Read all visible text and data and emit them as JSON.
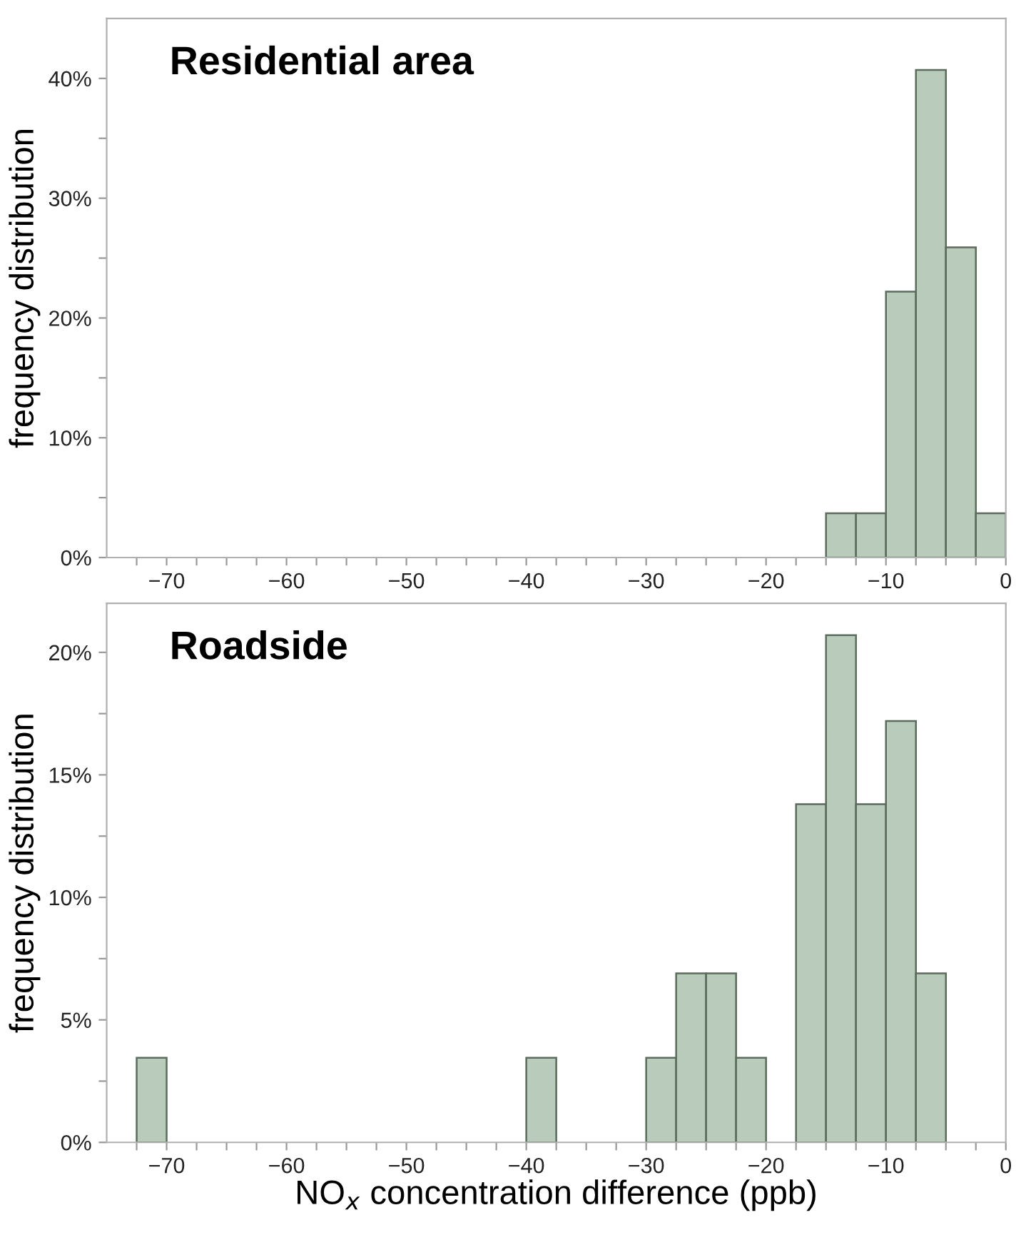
{
  "chart_data": [
    {
      "type": "histogram",
      "title": "Residential area",
      "ylabel": "frequency distribution",
      "color": "#b9cbbb",
      "bins": [
        -15,
        -12.5,
        -10,
        -7.5,
        -5,
        -2.5,
        0
      ],
      "values": [
        3.7,
        3.7,
        22.2,
        40.7,
        25.9,
        3.7
      ],
      "xlim": [
        -75,
        0
      ],
      "xticks": [
        {
          "value": -72.5,
          "label": null
        },
        {
          "value": -70,
          "label": "−70"
        },
        {
          "value": -67.5,
          "label": null
        },
        {
          "value": -65,
          "label": null
        },
        {
          "value": -62.5,
          "label": null
        },
        {
          "value": -60,
          "label": "−60"
        },
        {
          "value": -57.5,
          "label": null
        },
        {
          "value": -55,
          "label": null
        },
        {
          "value": -52.5,
          "label": null
        },
        {
          "value": -50,
          "label": "−50"
        },
        {
          "value": -47.5,
          "label": null
        },
        {
          "value": -45,
          "label": null
        },
        {
          "value": -42.5,
          "label": null
        },
        {
          "value": -40,
          "label": "−40"
        },
        {
          "value": -37.5,
          "label": null
        },
        {
          "value": -35,
          "label": null
        },
        {
          "value": -32.5,
          "label": null
        },
        {
          "value": -30,
          "label": "−30"
        },
        {
          "value": -27.5,
          "label": null
        },
        {
          "value": -25,
          "label": null
        },
        {
          "value": -22.5,
          "label": null
        },
        {
          "value": -20,
          "label": "−20"
        },
        {
          "value": -17.5,
          "label": null
        },
        {
          "value": -15,
          "label": null
        },
        {
          "value": -12.5,
          "label": null
        },
        {
          "value": -10,
          "label": "−10"
        },
        {
          "value": -7.5,
          "label": null
        },
        {
          "value": -5,
          "label": null
        },
        {
          "value": -2.5,
          "label": null
        },
        0
      ],
      "ylim": [
        0,
        45
      ],
      "yticks": [
        {
          "value": 0,
          "label": "0%"
        },
        {
          "value": 5,
          "label": null
        },
        {
          "value": 10,
          "label": "10%"
        },
        {
          "value": 15,
          "label": null
        },
        {
          "value": 20,
          "label": "20%"
        },
        {
          "value": 25,
          "label": null
        },
        {
          "value": 30,
          "label": "30%"
        },
        {
          "value": 35,
          "label": null
        },
        {
          "value": 40,
          "label": "40%"
        }
      ],
      "grid": false,
      "legend": false
    },
    {
      "type": "histogram",
      "title": "Roadside",
      "ylabel": "frequency distribution",
      "xlabel": "NO$_{x}$ concentration difference (ppb)",
      "color": "#b9cbbb",
      "bins": [
        -72.5,
        -70,
        -67.5,
        -65,
        -62.5,
        -60,
        -57.5,
        -55,
        -52.5,
        -50,
        -47.5,
        -45,
        -42.5,
        -40,
        -37.5,
        -35,
        -32.5,
        -30,
        -27.5,
        -25,
        -22.5,
        -20,
        -17.5,
        -15,
        -12.5,
        -10,
        -7.5,
        -5
      ],
      "values": [
        3.45,
        0,
        0,
        0,
        0,
        0,
        0,
        0,
        0,
        0,
        0,
        0,
        0,
        3.45,
        0,
        0,
        0,
        3.45,
        6.9,
        6.9,
        3.45,
        0,
        13.8,
        20.7,
        13.8,
        17.2,
        6.9
      ],
      "xlim": [
        -75,
        0
      ],
      "xticks": [
        {
          "value": -72.5,
          "label": null
        },
        {
          "value": -70,
          "label": "−70"
        },
        {
          "value": -67.5,
          "label": null
        },
        {
          "value": -65,
          "label": null
        },
        {
          "value": -62.5,
          "label": null
        },
        {
          "value": -60,
          "label": "−60"
        },
        {
          "value": -57.5,
          "label": null
        },
        {
          "value": -55,
          "label": null
        },
        {
          "value": -52.5,
          "label": null
        },
        {
          "value": -50,
          "label": "−50"
        },
        {
          "value": -47.5,
          "label": null
        },
        {
          "value": -45,
          "label": null
        },
        {
          "value": -42.5,
          "label": null
        },
        {
          "value": -40,
          "label": "−40"
        },
        {
          "value": -37.5,
          "label": null
        },
        {
          "value": -35,
          "label": null
        },
        {
          "value": -32.5,
          "label": null
        },
        {
          "value": -30,
          "label": "−30"
        },
        {
          "value": -27.5,
          "label": null
        },
        {
          "value": -25,
          "label": null
        },
        {
          "value": -22.5,
          "label": null
        },
        {
          "value": -20,
          "label": "−20"
        },
        {
          "value": -17.5,
          "label": null
        },
        {
          "value": -15,
          "label": null
        },
        {
          "value": -12.5,
          "label": null
        },
        {
          "value": -10,
          "label": "−10"
        },
        {
          "value": -7.5,
          "label": null
        },
        {
          "value": -5,
          "label": null
        },
        {
          "value": -2.5,
          "label": null
        },
        0
      ],
      "ylim": [
        0,
        22
      ],
      "yticks": [
        {
          "value": 0,
          "label": "0%"
        },
        {
          "value": 2.5,
          "label": null
        },
        {
          "value": 5,
          "label": "5%"
        },
        {
          "value": 7.5,
          "label": null
        },
        {
          "value": 10,
          "label": "10%"
        },
        {
          "value": 12.5,
          "label": null
        },
        {
          "value": 15,
          "label": "15%"
        },
        {
          "value": 17.5,
          "label": null
        },
        {
          "value": 20,
          "label": "20%"
        }
      ],
      "grid": false,
      "legend": false
    }
  ]
}
